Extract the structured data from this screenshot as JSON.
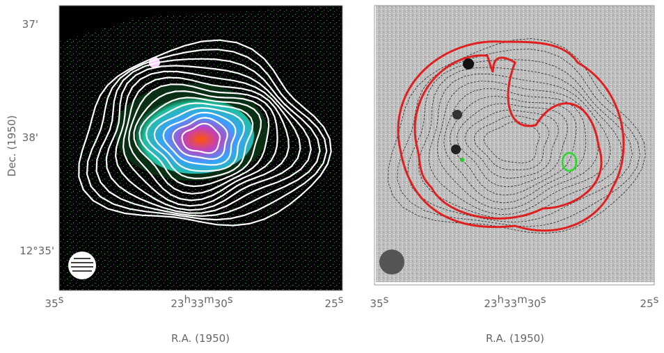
{
  "panels": [
    {
      "y_axis": {
        "label": "Dec. (1950)",
        "ticks": [
          "37'",
          "38'",
          "12°35'"
        ]
      },
      "x_axis": {
        "label": "R.A. (1950)",
        "ticks": [
          [
            "35",
            "s"
          ],
          [
            "23",
            "h",
            "33",
            "m",
            "30",
            "s"
          ],
          [
            "25",
            "s"
          ]
        ]
      }
    },
    {
      "x_axis": {
        "label": "R.A. (1950)",
        "ticks": [
          [
            "35",
            "s"
          ],
          [
            "23",
            "h",
            "33",
            "m",
            "30",
            "s"
          ],
          [
            "25",
            "s"
          ]
        ]
      }
    }
  ]
}
